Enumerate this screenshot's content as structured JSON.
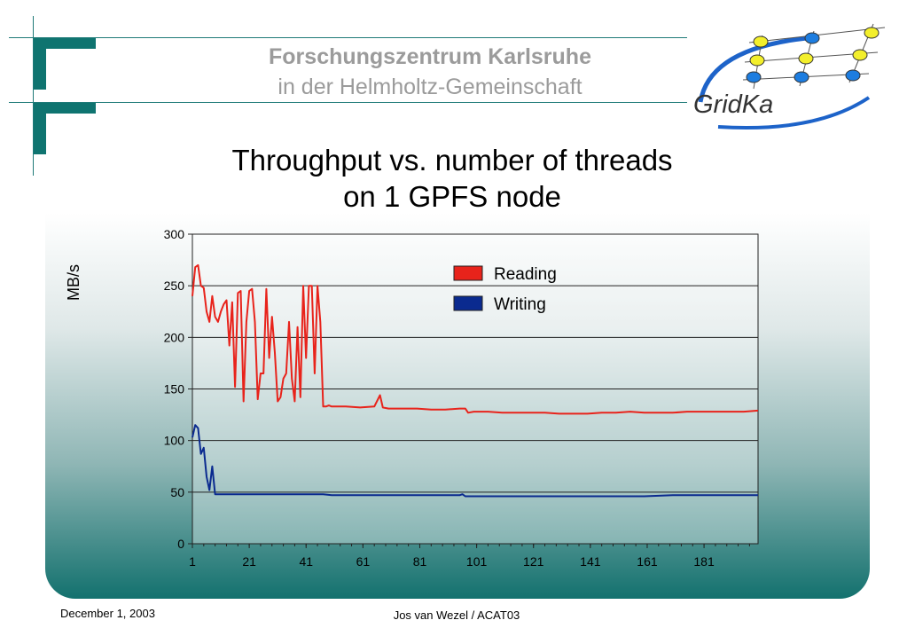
{
  "header": {
    "org_name": "Forschungszentrum Karlsruhe",
    "org_sub": "in der Helmholtz-Gemeinschaft",
    "logo_text": "GridKa"
  },
  "slide": {
    "title_line1": "Throughput vs. number of threads",
    "title_line2": "on 1 GPFS node"
  },
  "footer": {
    "date": "December 1, 2003",
    "author": "Jos van Wezel / ACAT03"
  },
  "colors": {
    "teal": "#0f7470",
    "reading": "#e8231b",
    "writing": "#0a2a8f"
  },
  "chart_data": {
    "type": "line",
    "title": "",
    "xlabel": "",
    "ylabel": "MB/s",
    "xlim": [
      1,
      200
    ],
    "ylim": [
      0,
      300
    ],
    "xticks": [
      "1",
      "21",
      "41",
      "61",
      "81",
      "101",
      "121",
      "141",
      "161",
      "181"
    ],
    "yticks": [
      "0",
      "50",
      "100",
      "150",
      "200",
      "250",
      "300"
    ],
    "legend_position": "top-right",
    "grid": "horizontal",
    "series": [
      {
        "name": "Reading",
        "color": "#e8231b",
        "x": [
          1,
          2,
          3,
          4,
          5,
          6,
          7,
          8,
          9,
          10,
          11,
          12,
          13,
          14,
          15,
          16,
          17,
          18,
          19,
          20,
          21,
          22,
          23,
          24,
          25,
          26,
          27,
          28,
          29,
          30,
          31,
          32,
          33,
          34,
          35,
          36,
          37,
          38,
          39,
          40,
          41,
          42,
          43,
          44,
          45,
          46,
          47,
          48,
          49,
          50,
          55,
          60,
          65,
          67,
          68,
          70,
          75,
          80,
          85,
          90,
          95,
          97,
          98,
          100,
          105,
          110,
          115,
          120,
          125,
          130,
          135,
          140,
          145,
          150,
          155,
          160,
          165,
          170,
          175,
          180,
          185,
          190,
          195,
          200
        ],
        "y": [
          240,
          268,
          270,
          250,
          248,
          225,
          215,
          240,
          220,
          215,
          225,
          232,
          236,
          192,
          234,
          152,
          243,
          245,
          138,
          215,
          245,
          247,
          215,
          140,
          165,
          165,
          247,
          180,
          220,
          185,
          138,
          142,
          160,
          165,
          215,
          160,
          138,
          210,
          142,
          250,
          180,
          250,
          250,
          165,
          250,
          215,
          133,
          133,
          134,
          133,
          133,
          132,
          133,
          144,
          132,
          131,
          131,
          131,
          130,
          130,
          131,
          131,
          127,
          128,
          128,
          127,
          127,
          127,
          127,
          126,
          126,
          126,
          127,
          127,
          128,
          127,
          127,
          127,
          128,
          128,
          128,
          128,
          128,
          129
        ]
      },
      {
        "name": "Writing",
        "color": "#0a2a8f",
        "x": [
          1,
          2,
          3,
          4,
          5,
          6,
          7,
          8,
          9,
          10,
          11,
          15,
          20,
          30,
          40,
          47,
          50,
          55,
          60,
          70,
          80,
          90,
          95,
          96,
          97,
          100,
          110,
          120,
          130,
          140,
          150,
          160,
          170,
          180,
          190,
          200
        ],
        "y": [
          103,
          115,
          112,
          87,
          93,
          65,
          52,
          75,
          48,
          48,
          48,
          48,
          48,
          48,
          48,
          48,
          47,
          47,
          47,
          47,
          47,
          47,
          47,
          48,
          46,
          46,
          46,
          46,
          46,
          46,
          46,
          46,
          47,
          47,
          47,
          47
        ]
      }
    ]
  }
}
